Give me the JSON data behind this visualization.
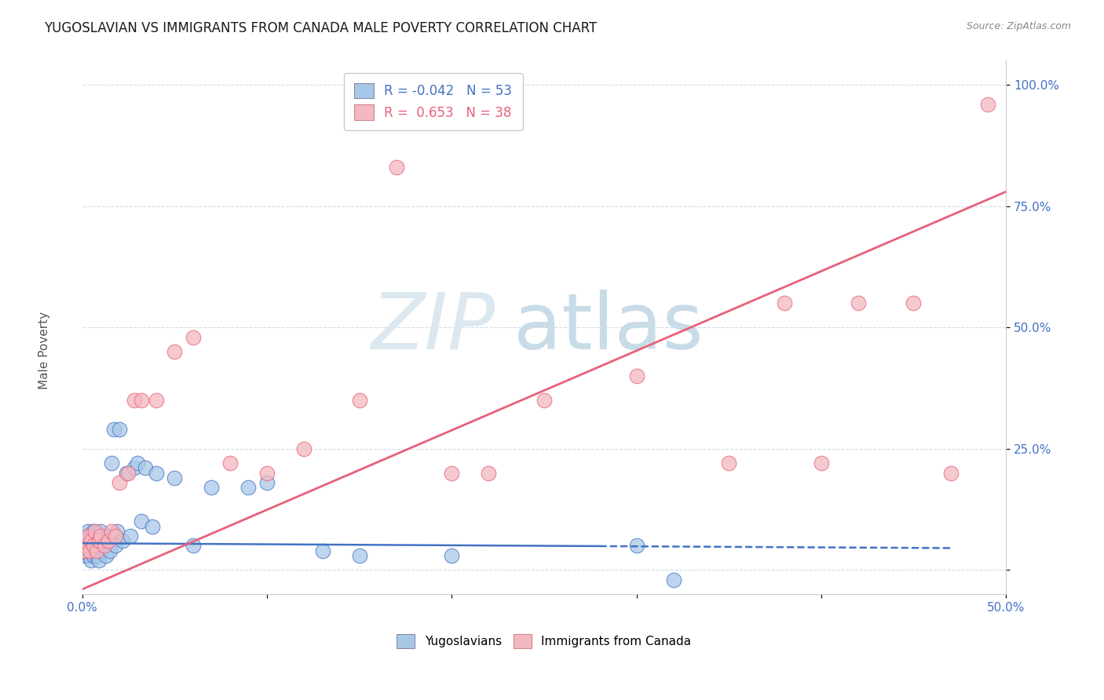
{
  "title": "YUGOSLAVIAN VS IMMIGRANTS FROM CANADA MALE POVERTY CORRELATION CHART",
  "source_text": "Source: ZipAtlas.com",
  "xlabel": "",
  "ylabel": "Male Poverty",
  "xlim": [
    0.0,
    0.5
  ],
  "ylim": [
    -0.05,
    1.05
  ],
  "yticks": [
    0.0,
    0.25,
    0.5,
    0.75,
    1.0
  ],
  "ytick_labels": [
    "",
    "25.0%",
    "50.0%",
    "75.0%",
    "100.0%"
  ],
  "xticks": [
    0.0,
    0.1,
    0.2,
    0.3,
    0.4,
    0.5
  ],
  "xtick_labels": [
    "0.0%",
    "",
    "",
    "",
    "",
    "50.0%"
  ],
  "legend_R_yugo": "-0.042",
  "legend_N_yugo": "53",
  "legend_R_canada": "0.653",
  "legend_N_canada": "38",
  "color_yugo": "#a8c8e8",
  "color_canada": "#f4b8c0",
  "line_color_yugo": "#4472c4",
  "line_color_canada": "#e8607a",
  "background_color": "#ffffff",
  "grid_color": "#d0dce8",
  "yugo_line_x": [
    0.0,
    0.47
  ],
  "yugo_line_y": [
    0.055,
    0.045
  ],
  "yugo_line_solid_end": 0.28,
  "canada_line_x": [
    0.0,
    0.5
  ],
  "canada_line_y": [
    -0.04,
    0.78
  ],
  "yugo_x": [
    0.001,
    0.001,
    0.002,
    0.002,
    0.002,
    0.003,
    0.003,
    0.003,
    0.004,
    0.004,
    0.004,
    0.005,
    0.005,
    0.005,
    0.006,
    0.006,
    0.007,
    0.007,
    0.008,
    0.008,
    0.009,
    0.009,
    0.01,
    0.01,
    0.011,
    0.012,
    0.013,
    0.014,
    0.015,
    0.016,
    0.017,
    0.018,
    0.019,
    0.02,
    0.022,
    0.024,
    0.026,
    0.028,
    0.03,
    0.032,
    0.034,
    0.038,
    0.04,
    0.05,
    0.06,
    0.07,
    0.09,
    0.1,
    0.13,
    0.15,
    0.2,
    0.3,
    0.32
  ],
  "yugo_y": [
    0.04,
    0.06,
    0.03,
    0.07,
    0.05,
    0.04,
    0.06,
    0.08,
    0.03,
    0.05,
    0.07,
    0.02,
    0.04,
    0.06,
    0.03,
    0.08,
    0.04,
    0.06,
    0.03,
    0.07,
    0.02,
    0.05,
    0.04,
    0.08,
    0.05,
    0.06,
    0.03,
    0.07,
    0.04,
    0.22,
    0.29,
    0.05,
    0.08,
    0.29,
    0.06,
    0.2,
    0.07,
    0.21,
    0.22,
    0.1,
    0.21,
    0.09,
    0.2,
    0.19,
    0.05,
    0.17,
    0.17,
    0.18,
    0.04,
    0.03,
    0.03,
    0.05,
    -0.02
  ],
  "canada_x": [
    0.001,
    0.001,
    0.002,
    0.003,
    0.004,
    0.005,
    0.006,
    0.007,
    0.008,
    0.009,
    0.01,
    0.012,
    0.014,
    0.016,
    0.018,
    0.02,
    0.025,
    0.028,
    0.032,
    0.04,
    0.05,
    0.06,
    0.08,
    0.1,
    0.12,
    0.15,
    0.17,
    0.2,
    0.22,
    0.25,
    0.3,
    0.35,
    0.38,
    0.4,
    0.42,
    0.45,
    0.47,
    0.49
  ],
  "canada_y": [
    0.04,
    0.06,
    0.05,
    0.07,
    0.04,
    0.06,
    0.05,
    0.08,
    0.04,
    0.06,
    0.07,
    0.05,
    0.06,
    0.08,
    0.07,
    0.18,
    0.2,
    0.35,
    0.35,
    0.35,
    0.45,
    0.48,
    0.22,
    0.2,
    0.25,
    0.35,
    0.83,
    0.2,
    0.2,
    0.35,
    0.4,
    0.22,
    0.55,
    0.22,
    0.55,
    0.55,
    0.2,
    0.96
  ]
}
